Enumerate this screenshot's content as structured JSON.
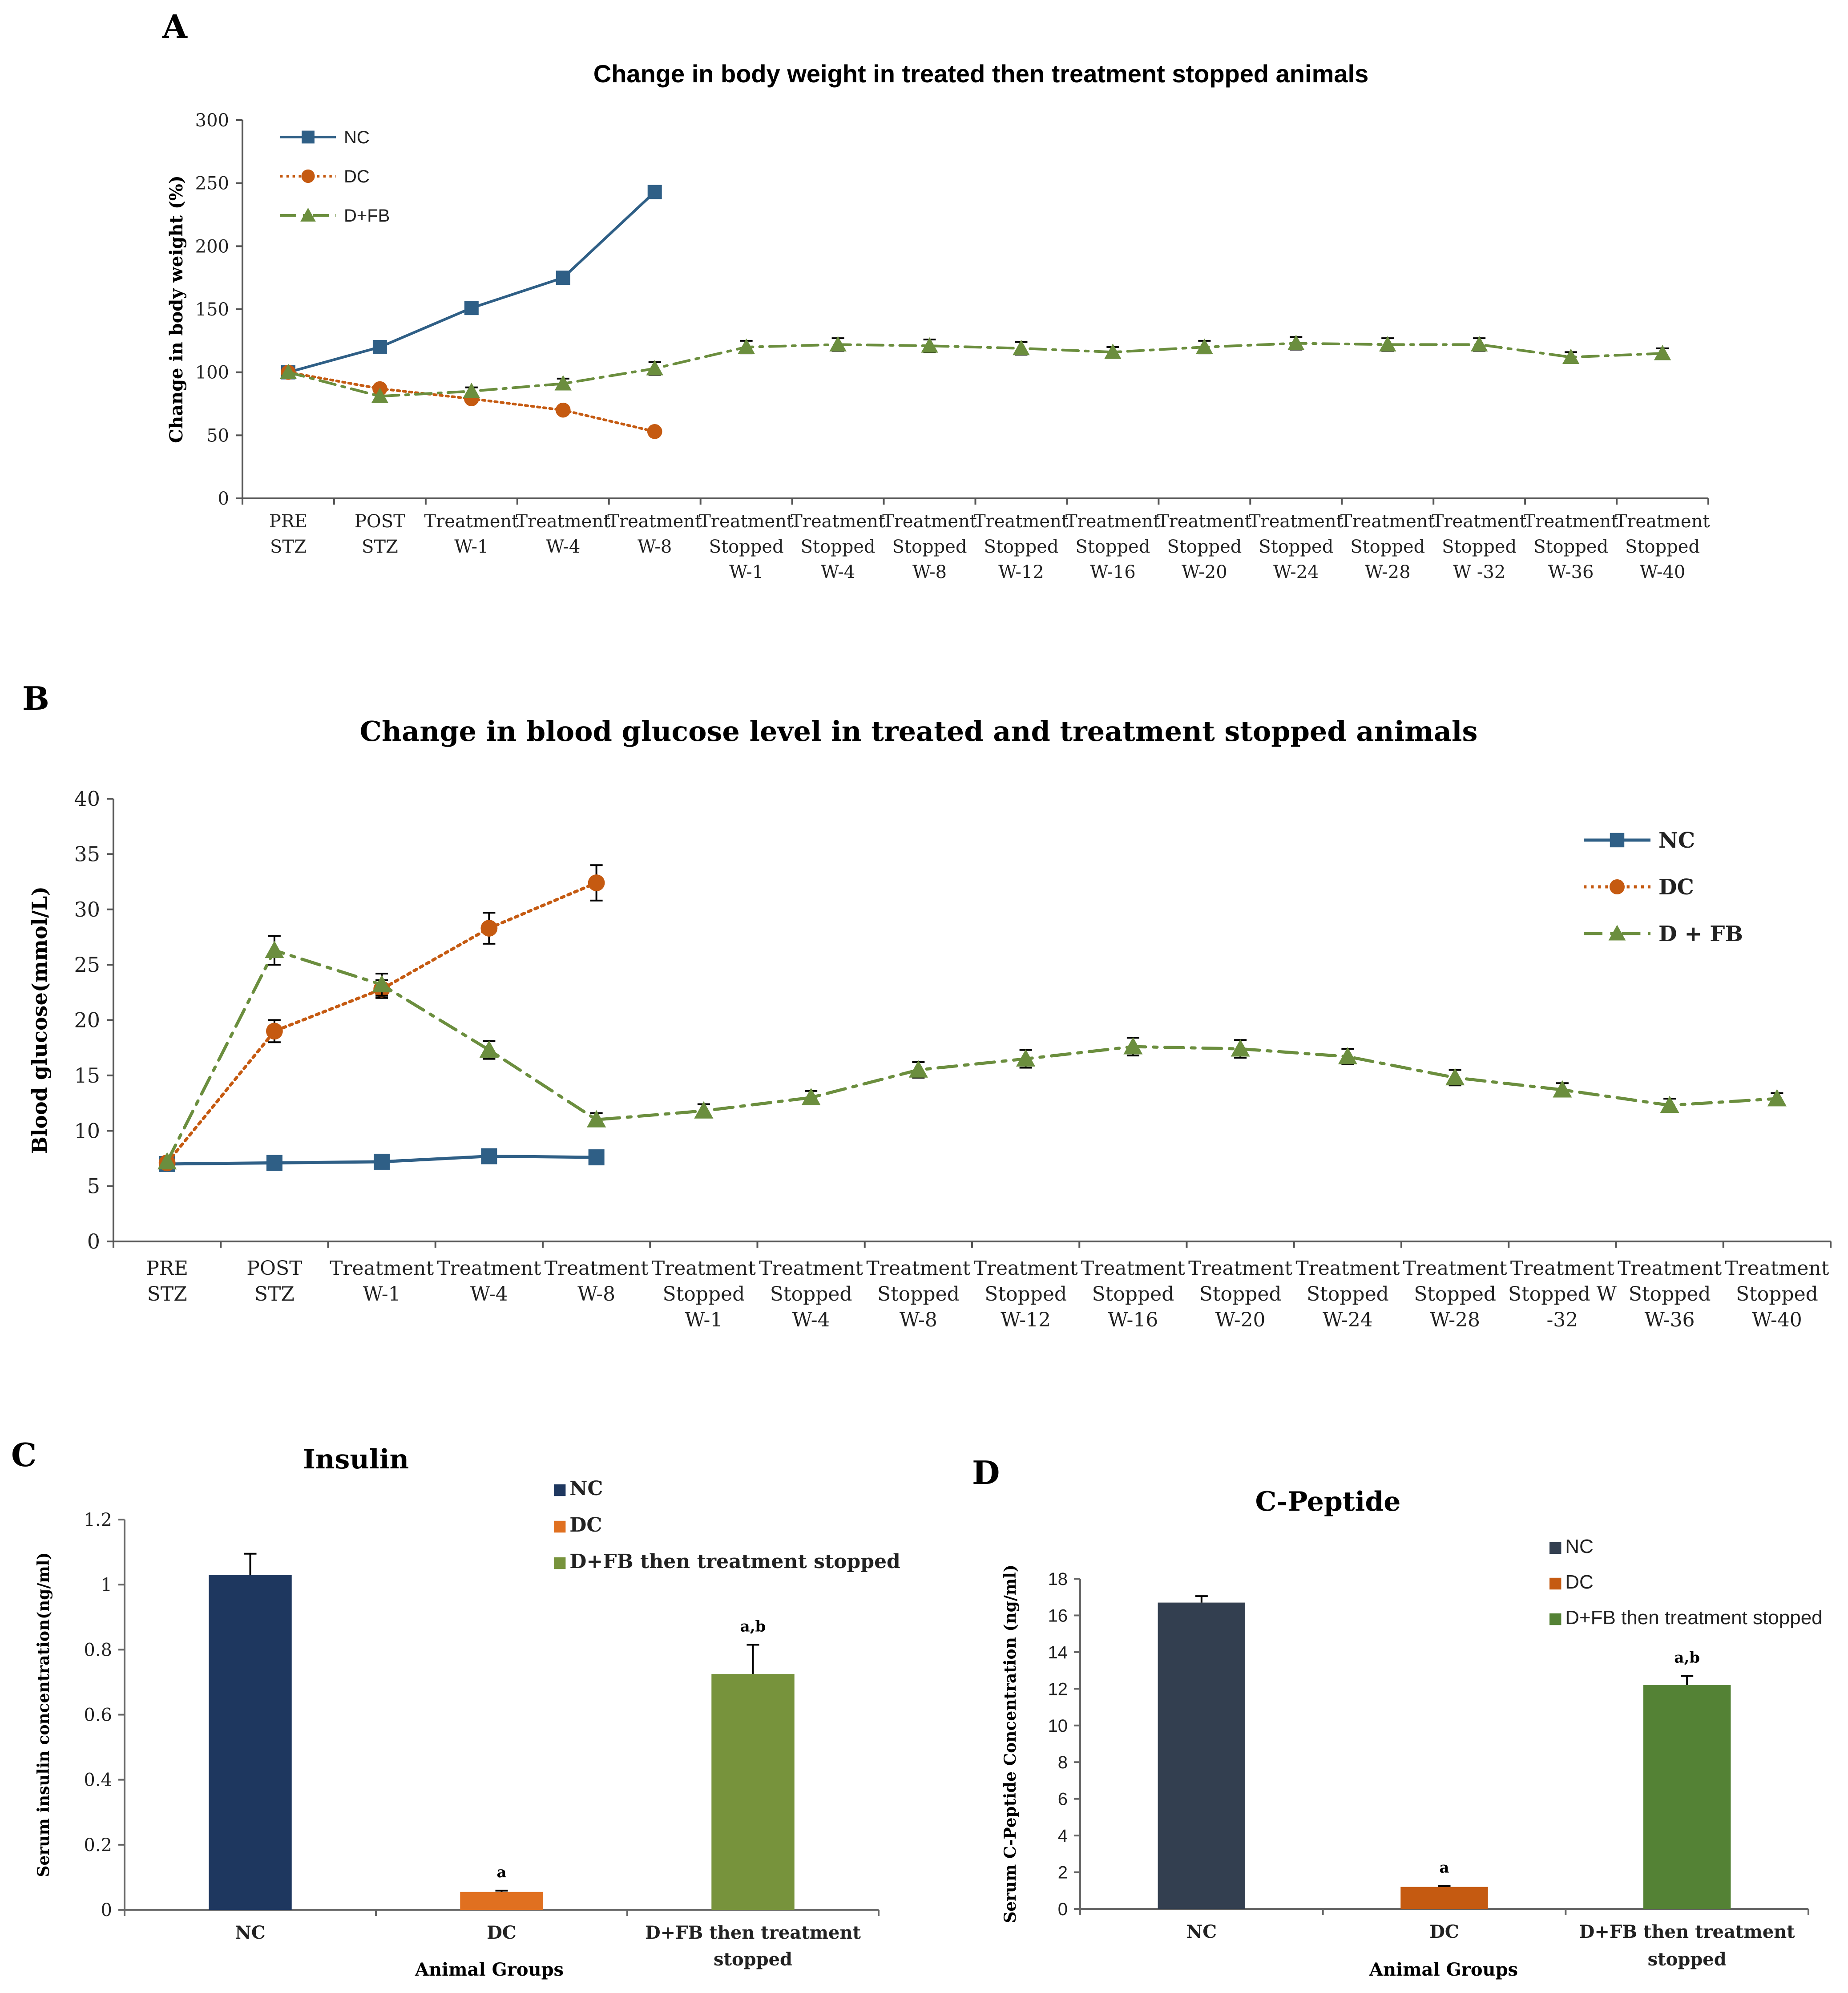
{
  "chart_data": [
    {
      "panel": "A",
      "type": "line",
      "title": "Change in body weight in treated then treatment stopped animals",
      "xlabel": "",
      "ylabel": "Change in body weight (%)",
      "ylim": [
        0,
        300
      ],
      "yticks": [
        0,
        50,
        100,
        150,
        200,
        250,
        300
      ],
      "legend": "top-left",
      "categories": [
        [
          "PRE",
          "STZ"
        ],
        [
          "POST",
          "STZ"
        ],
        [
          "Treatment",
          "W-1"
        ],
        [
          "Treatment",
          "W-4"
        ],
        [
          "Treatment",
          "W-8"
        ],
        [
          "Treatment",
          "Stopped",
          "W-1"
        ],
        [
          "Treatment",
          "Stopped",
          "W-4"
        ],
        [
          "Treatment",
          "Stopped",
          "W-8"
        ],
        [
          "Treatment",
          "Stopped",
          "W-12"
        ],
        [
          "Treatment",
          "Stopped",
          "W-16"
        ],
        [
          "Treatment",
          "Stopped",
          "W-20"
        ],
        [
          "Treatment",
          "Stopped",
          "W-24"
        ],
        [
          "Treatment",
          "Stopped",
          "W-28"
        ],
        [
          "Treatment",
          "Stopped",
          "W -32"
        ],
        [
          "Treatment",
          "Stopped",
          "W-36"
        ],
        [
          "Treatment",
          "Stopped",
          "W-40"
        ]
      ],
      "series": [
        {
          "name": "NC",
          "marker": "square",
          "color": "#2f5f86",
          "dash": "solid",
          "values": [
            100,
            120,
            151,
            175,
            243,
            null,
            null,
            null,
            null,
            null,
            null,
            null,
            null,
            null,
            null,
            null
          ],
          "errors": [
            0,
            0,
            0,
            0,
            0
          ]
        },
        {
          "name": "DC",
          "marker": "circle",
          "color": "#c55a11",
          "dash": "dotted",
          "values": [
            100,
            87,
            79,
            70,
            53,
            null,
            null,
            null,
            null,
            null,
            null,
            null,
            null,
            null,
            null,
            null
          ],
          "errors": [
            0,
            0,
            0,
            0,
            0
          ]
        },
        {
          "name": "D+FB",
          "marker": "triangle",
          "color": "#6b8e3e",
          "dash": "dashdot",
          "values": [
            100,
            81,
            85,
            91,
            103,
            120,
            122,
            121,
            119,
            116,
            120,
            123,
            122,
            122,
            112,
            115
          ],
          "errors": [
            0,
            0,
            3,
            4,
            5,
            5,
            5,
            5,
            5,
            4,
            5,
            5,
            5,
            5,
            4,
            4
          ]
        }
      ]
    },
    {
      "panel": "B",
      "type": "line",
      "title": "Change in blood glucose level in treated and treatment stopped animals",
      "xlabel": "",
      "ylabel": "Blood glucose(mmol/L)",
      "ylim": [
        0,
        40
      ],
      "yticks": [
        0,
        5,
        10,
        15,
        20,
        25,
        30,
        35,
        40
      ],
      "legend": "top-right",
      "categories": [
        [
          "PRE",
          "STZ"
        ],
        [
          "POST",
          "STZ"
        ],
        [
          "Treatment",
          "W-1"
        ],
        [
          "Treatment",
          "W-4"
        ],
        [
          "Treatment",
          "W-8"
        ],
        [
          "Treatment",
          "Stopped",
          "W-1"
        ],
        [
          "Treatment",
          "Stopped",
          "W-4"
        ],
        [
          "Treatment",
          "Stopped",
          "W-8"
        ],
        [
          "Treatment",
          "Stopped",
          "W-12"
        ],
        [
          "Treatment",
          "Stopped",
          "W-16"
        ],
        [
          "Treatment",
          "Stopped",
          "W-20"
        ],
        [
          "Treatment",
          "Stopped",
          "W-24"
        ],
        [
          "Treatment",
          "Stopped",
          "W-28"
        ],
        [
          "Treatment",
          "Stopped W",
          "-32"
        ],
        [
          "Treatment",
          "Stopped",
          "W-36"
        ],
        [
          "Treatment",
          "Stopped",
          "W-40"
        ]
      ],
      "series": [
        {
          "name": "NC",
          "marker": "square",
          "color": "#2f5f86",
          "dash": "solid",
          "values": [
            7.0,
            7.1,
            7.2,
            7.7,
            7.6,
            null,
            null,
            null,
            null,
            null,
            null,
            null,
            null,
            null,
            null,
            null
          ],
          "errors": [
            0,
            0,
            0,
            0,
            0
          ]
        },
        {
          "name": "DC",
          "marker": "circle",
          "color": "#c55a11",
          "dash": "dotted",
          "values": [
            7.1,
            19.0,
            22.8,
            28.3,
            32.4,
            null,
            null,
            null,
            null,
            null,
            null,
            null,
            null,
            null,
            null,
            null
          ],
          "errors": [
            0,
            1.0,
            0.8,
            1.4,
            1.6
          ]
        },
        {
          "name": "D + FB",
          "marker": "triangle",
          "color": "#6b8e3e",
          "dash": "dashdot",
          "values": [
            7.2,
            26.3,
            23.2,
            17.3,
            11.0,
            11.8,
            13.0,
            15.5,
            16.5,
            17.6,
            17.4,
            16.7,
            14.8,
            13.7,
            12.3,
            12.9
          ],
          "errors": [
            0,
            1.3,
            1.0,
            0.8,
            0.6,
            0.6,
            0.6,
            0.7,
            0.8,
            0.8,
            0.8,
            0.7,
            0.7,
            0.6,
            0.6,
            0.5
          ]
        }
      ]
    },
    {
      "panel": "C",
      "type": "bar",
      "title": "Insulin",
      "xlabel": "Animal Groups",
      "ylabel": "Serum insulin concentration(ng/ml)",
      "ylim": [
        0,
        1.2
      ],
      "yticks": [
        0,
        0.2,
        0.4,
        0.6,
        0.8,
        1,
        1.2
      ],
      "legend": "top-right",
      "categories": [
        [
          "NC"
        ],
        [
          "DC"
        ],
        [
          "D+FB then treatment",
          "stopped"
        ]
      ],
      "legend_labels": [
        "NC",
        "DC",
        "D+FB then treatment stopped"
      ],
      "values": [
        1.03,
        0.055,
        0.725
      ],
      "errors": [
        0.065,
        0.004,
        0.09
      ],
      "annotations": [
        "",
        "a",
        "a,b"
      ],
      "colors": [
        "#1e375f",
        "#e07020",
        "#77933c"
      ]
    },
    {
      "panel": "D",
      "type": "bar",
      "title": "C-Peptide",
      "xlabel": "Animal Groups",
      "ylabel": "Serum C-Peptide  Concentration  (ng/ml)",
      "ylim": [
        0,
        18
      ],
      "yticks": [
        0,
        2,
        4,
        6,
        8,
        10,
        12,
        14,
        16,
        18
      ],
      "legend": "top-right",
      "categories": [
        [
          "NC"
        ],
        [
          "DC"
        ],
        [
          "D+FB then treatment",
          "stopped"
        ]
      ],
      "legend_labels": [
        "NC",
        "DC",
        "D+FB then treatment stopped"
      ],
      "values": [
        16.7,
        1.2,
        12.2
      ],
      "errors": [
        0.35,
        0.05,
        0.5
      ],
      "annotations": [
        "",
        "a",
        "a,b"
      ],
      "colors": [
        "#333f50",
        "#c55a11",
        "#548235"
      ]
    }
  ]
}
